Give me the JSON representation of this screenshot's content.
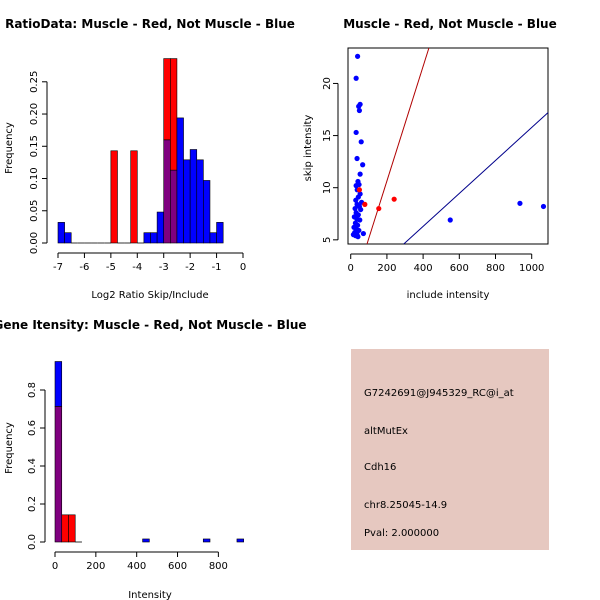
{
  "colors": {
    "red": "#ff0000",
    "blue": "#0000ff",
    "overlap": "#7f007f",
    "darkred": "#b00000",
    "navy": "#00008b",
    "panel_bg": "#e6c8c0",
    "pval": "#b00000"
  },
  "chart_data": [
    {
      "id": "ratio",
      "type": "bar",
      "title": "RatioData: Muscle - Red, Not Muscle - Blue",
      "xlabel": "Log2 Ratio Skip/Include",
      "ylabel": "Frequency",
      "xlim": [
        -7,
        0
      ],
      "ylim": [
        0,
        0.29
      ],
      "xticks": [
        "-7",
        "-6",
        "-5",
        "-4",
        "-3",
        "-2",
        "-1",
        "0"
      ],
      "yticks": [
        "0.00",
        "0.05",
        "0.10",
        "0.15",
        "0.20",
        "0.25"
      ],
      "bin_width": 0.25,
      "series": [
        {
          "name": "Not Muscle",
          "color": "blue",
          "bins": [
            [
              -7.0,
              0.032
            ],
            [
              -6.75,
              0.016
            ],
            [
              -6.5,
              0
            ],
            [
              -6.25,
              0
            ],
            [
              -6.0,
              0
            ],
            [
              -5.75,
              0
            ],
            [
              -5.5,
              0
            ],
            [
              -5.25,
              0
            ],
            [
              -5.0,
              0
            ],
            [
              -4.75,
              0
            ],
            [
              -4.5,
              0
            ],
            [
              -4.25,
              0
            ],
            [
              -4.0,
              0
            ],
            [
              -3.75,
              0.016
            ],
            [
              -3.5,
              0.016
            ],
            [
              -3.25,
              0.048
            ],
            [
              -3.0,
              0.16
            ],
            [
              -2.75,
              0.113
            ],
            [
              -2.5,
              0.194
            ],
            [
              -2.25,
              0.129
            ],
            [
              -2.0,
              0.145
            ],
            [
              -1.75,
              0.129
            ],
            [
              -1.5,
              0.097
            ],
            [
              -1.25,
              0.016
            ],
            [
              -1.0,
              0.032
            ]
          ]
        },
        {
          "name": "Muscle",
          "color": "red",
          "bins": [
            [
              -5.0,
              0.143
            ],
            [
              -4.25,
              0.143
            ],
            [
              -3.0,
              0.286
            ],
            [
              -2.75,
              0.286
            ]
          ]
        }
      ]
    },
    {
      "id": "scatter",
      "type": "scatter",
      "title": "Muscle - Red, Not Muscle - Blue",
      "xlabel": "include intensity",
      "ylabel": "skip intensity",
      "xlim": [
        -15,
        1090
      ],
      "ylim": [
        4.6,
        23.4
      ],
      "xticks": [
        "0",
        "200",
        "400",
        "600",
        "800",
        "1000"
      ],
      "yticks": [
        "5",
        "10",
        "15",
        "20"
      ],
      "lines": [
        {
          "name": "red-line",
          "color": "darkred",
          "from": [
            90,
            4.6
          ],
          "to": [
            432,
            23.4
          ]
        },
        {
          "name": "blue-line",
          "color": "navy",
          "from": [
            293,
            4.6
          ],
          "to": [
            1090,
            17.2
          ]
        }
      ],
      "series": [
        {
          "name": "Not Muscle",
          "color": "blue",
          "points": [
            [
              38,
              22.6
            ],
            [
              30,
              20.5
            ],
            [
              52,
              18.0
            ],
            [
              44,
              17.8
            ],
            [
              48,
              17.4
            ],
            [
              30,
              15.3
            ],
            [
              58,
              14.4
            ],
            [
              35,
              12.8
            ],
            [
              66,
              12.2
            ],
            [
              52,
              11.3
            ],
            [
              40,
              10.6
            ],
            [
              30,
              10.2
            ],
            [
              46,
              10.3
            ],
            [
              36,
              9.8
            ],
            [
              52,
              9.4
            ],
            [
              42,
              9.1
            ],
            [
              28,
              8.8
            ],
            [
              60,
              8.6
            ],
            [
              35,
              8.4
            ],
            [
              48,
              8.2
            ],
            [
              24,
              8.0
            ],
            [
              55,
              7.9
            ],
            [
              30,
              7.6
            ],
            [
              42,
              7.4
            ],
            [
              20,
              7.2
            ],
            [
              34,
              7.0
            ],
            [
              50,
              6.9
            ],
            [
              26,
              6.6
            ],
            [
              38,
              6.4
            ],
            [
              18,
              6.2
            ],
            [
              30,
              6.0
            ],
            [
              45,
              5.9
            ],
            [
              22,
              5.7
            ],
            [
              35,
              5.5
            ],
            [
              27,
              5.4
            ],
            [
              40,
              5.3
            ],
            [
              15,
              5.5
            ],
            [
              70,
              5.6
            ],
            [
              550,
              6.9
            ],
            [
              935,
              8.5
            ],
            [
              1065,
              8.2
            ]
          ]
        },
        {
          "name": "Muscle",
          "color": "red",
          "points": [
            [
              48,
              9.8
            ],
            [
              78,
              8.4
            ],
            [
              155,
              8.0
            ],
            [
              240,
              8.9
            ]
          ]
        }
      ]
    },
    {
      "id": "intensity",
      "type": "bar",
      "title": "Gene Itensity: Muscle - Red, Not Muscle - Blue",
      "xlabel": "Intensity",
      "ylabel": "Frequency",
      "xlim": [
        0,
        950
      ],
      "ylim": [
        0,
        1.0
      ],
      "xticks": [
        "0",
        "200",
        "400",
        "600",
        "800"
      ],
      "yticks": [
        "0.0",
        "0.2",
        "0.4",
        "0.6",
        "0.8"
      ],
      "bin_width": 33,
      "series": [
        {
          "name": "Not Muscle",
          "color": "blue",
          "bins": [
            [
              0,
              0.95
            ],
            [
              33,
              0
            ],
            [
              66,
              0
            ],
            [
              99,
              0
            ],
            [
              429,
              0.016
            ],
            [
              726,
              0.016
            ],
            [
              891,
              0.016
            ]
          ]
        },
        {
          "name": "Muscle",
          "color": "red",
          "bins": [
            [
              0,
              0.714
            ],
            [
              33,
              0.143
            ],
            [
              66,
              0.143
            ]
          ]
        }
      ]
    }
  ],
  "info": {
    "probe": "G7242691@J945329_RC@i_at",
    "event": "altMutEx",
    "gene": "Cdh16",
    "location": "chr8.25045-14.9",
    "pval": "Pval: 2.000000"
  }
}
